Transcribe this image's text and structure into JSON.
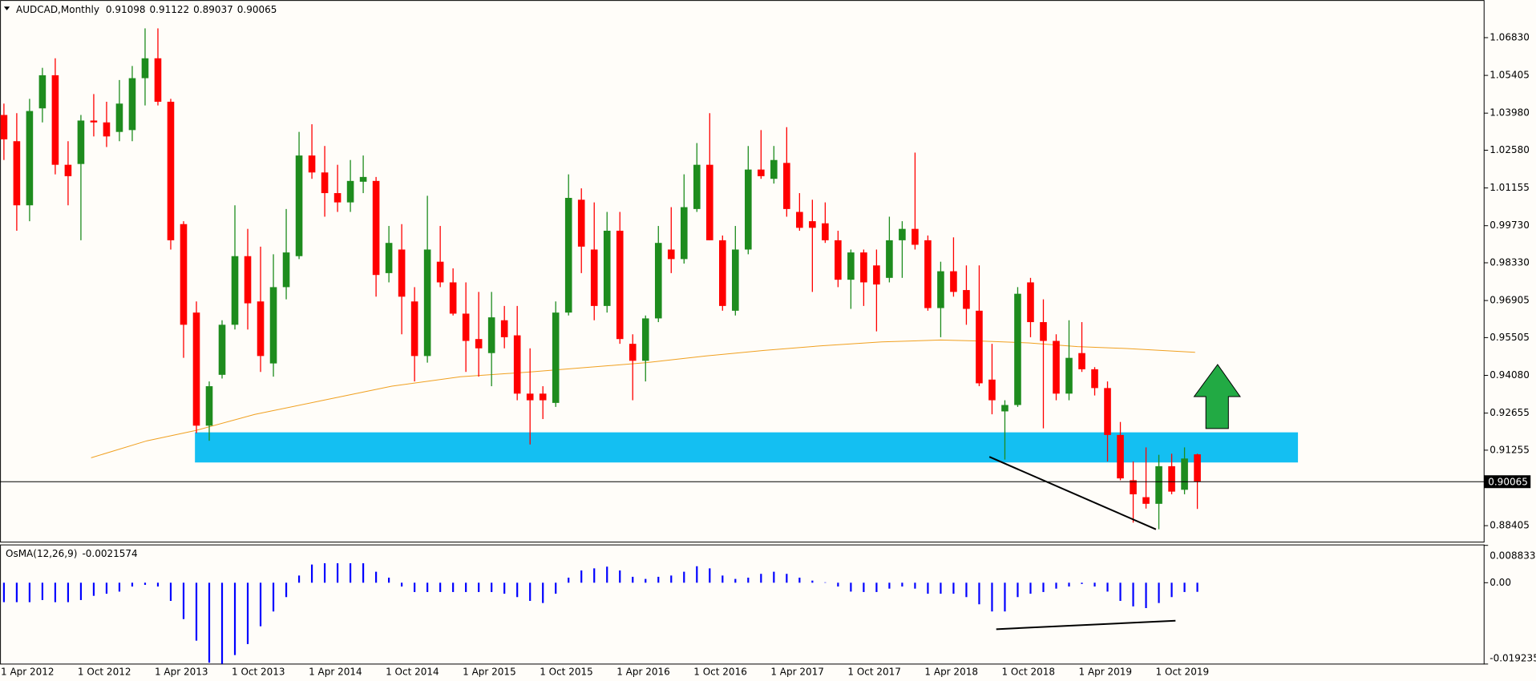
{
  "chart_data": [
    {
      "type": "candlestick",
      "title": "AUDCAD,Monthly",
      "categories": [
        "1 Apr 2012",
        null,
        null,
        null,
        null,
        null,
        "1 Oct 2012",
        null,
        null,
        null,
        null,
        null,
        "1 Apr 2013",
        null,
        null,
        null,
        null,
        null,
        "1 Oct 2013",
        null,
        null,
        null,
        null,
        null,
        "1 Apr 2014",
        null,
        null,
        null,
        null,
        null,
        "1 Oct 2014",
        null,
        null,
        null,
        null,
        null,
        "1 Apr 2015",
        null,
        null,
        null,
        null,
        null,
        "1 Oct 2015",
        null,
        null,
        null,
        null,
        null,
        "1 Apr 2016",
        null,
        null,
        null,
        null,
        null,
        "1 Oct 2016",
        null,
        null,
        null,
        null,
        null,
        "1 Apr 2017",
        null,
        null,
        null,
        null,
        null,
        "1 Oct 2017",
        null,
        null,
        null,
        null,
        null,
        "1 Apr 2018",
        null,
        null,
        null,
        null,
        null,
        "1 Oct 2018",
        null,
        null,
        null,
        null,
        null,
        "1 Apr 2019",
        null,
        null,
        null,
        null,
        null,
        "1 Oct 2019",
        null,
        null,
        null
      ],
      "open": [
        1.0391,
        1.0292,
        1.005,
        1.0416,
        1.0541,
        1.0203,
        1.0206,
        1.037,
        1.0363,
        1.0327,
        1.0334,
        1.053,
        1.0605,
        1.0441,
        0.9979,
        0.9645,
        0.9218,
        0.941,
        0.9599,
        0.9858,
        0.9687,
        0.9453,
        0.9741,
        0.9858,
        1.0238,
        1.0174,
        1.0096,
        1.0061,
        1.0139,
        1.0142,
        0.9794,
        0.9883,
        0.9687,
        0.9481,
        0.9837,
        0.9759,
        0.9641,
        0.9545,
        0.9492,
        0.9616,
        0.9559,
        0.9339,
        0.9339,
        0.9304,
        0.9645,
        1.0071,
        0.9883,
        0.967,
        0.9954,
        0.9527,
        0.9463,
        0.9623,
        0.9883,
        0.9847,
        1.0036,
        1.0203,
        0.9918,
        0.9652,
        0.9883,
        1.0185,
        1.015,
        1.021,
        1.0025,
        0.999,
        0.9982,
        0.9918,
        0.9769,
        0.9872,
        0.9823,
        0.9776,
        0.9918,
        0.9961,
        0.9918,
        0.9662,
        0.9801,
        0.973,
        0.9652,
        0.9392,
        0.9272,
        0.9296,
        0.9759,
        0.9609,
        0.9538,
        0.9339,
        0.9492,
        0.9431,
        0.936,
        0.9183,
        0.9012,
        0.8948,
        0.8923,
        0.9065,
        0.8976,
        0.91098
      ],
      "high": [
        1.0434,
        1.0398,
        1.0452,
        1.0569,
        1.0605,
        1.0292,
        1.0391,
        1.047,
        1.0441,
        1.0523,
        1.0576,
        1.0718,
        1.0718,
        1.0452,
        0.999,
        0.9687,
        0.9385,
        0.9616,
        1.005,
        0.9961,
        0.9894,
        0.9865,
        1.0036,
        1.0327,
        1.0356,
        1.0274,
        1.0203,
        1.0221,
        1.0238,
        1.0157,
        0.9972,
        0.9979,
        0.9741,
        1.0086,
        0.9972,
        0.9812,
        0.9759,
        0.9723,
        0.9723,
        0.967,
        0.967,
        0.951,
        0.9367,
        0.9687,
        1.0167,
        1.0114,
        1.0061,
        1.0025,
        1.0025,
        0.9563,
        0.9634,
        0.9972,
        1.0043,
        1.0167,
        1.0285,
        1.0398,
        0.9936,
        0.9972,
        1.0274,
        1.0334,
        1.0274,
        1.0345,
        1.0096,
        1.0071,
        1.0061,
        0.9954,
        0.9883,
        0.9883,
        0.9883,
        1.0007,
        0.999,
        1.0249,
        0.9936,
        0.9837,
        0.9929,
        0.9823,
        0.9823,
        0.9527,
        0.9314,
        0.9741,
        0.9776,
        0.9695,
        0.9563,
        0.9616,
        0.9609,
        0.9439,
        0.9385,
        0.9232,
        0.9083,
        0.9136,
        0.9108,
        0.9112,
        0.9136,
        0.91122
      ],
      "low": [
        1.0221,
        0.9954,
        0.999,
        1.0363,
        1.0167,
        1.005,
        0.9918,
        1.031,
        1.027,
        1.0292,
        1.0292,
        1.0427,
        1.0427,
        0.9883,
        0.9474,
        0.919,
        0.9161,
        0.9396,
        0.9581,
        0.9581,
        0.9421,
        0.9403,
        0.9695,
        0.9847,
        1.015,
        1.0007,
        1.0025,
        1.0025,
        1.0096,
        0.9705,
        0.9759,
        0.9563,
        0.9385,
        0.9456,
        0.9741,
        0.9634,
        0.9421,
        0.9403,
        0.9367,
        0.951,
        0.9314,
        0.9147,
        0.9243,
        0.9289,
        0.9634,
        0.9794,
        0.9616,
        0.9645,
        0.9527,
        0.9314,
        0.9385,
        0.9609,
        0.9794,
        0.983,
        1.0025,
        0.9918,
        0.9652,
        0.9634,
        0.9865,
        1.015,
        1.0132,
        1.0007,
        0.9954,
        0.9723,
        0.9908,
        0.9741,
        0.9659,
        0.967,
        0.9574,
        0.9759,
        0.9776,
        0.9883,
        0.9652,
        0.9552,
        0.9705,
        0.9599,
        0.9367,
        0.9261,
        0.909,
        0.9289,
        0.9552,
        0.9208,
        0.9314,
        0.9314,
        0.9421,
        0.9332,
        0.9083,
        0.9012,
        0.8852,
        0.8905,
        0.8827,
        0.8959,
        0.8959,
        0.89037
      ],
      "close": [
        1.0299,
        1.005,
        1.0406,
        1.0541,
        1.0203,
        1.016,
        1.037,
        1.0363,
        1.031,
        1.0434,
        1.053,
        1.0605,
        1.0441,
        0.9918,
        0.9599,
        0.9218,
        0.9367,
        0.9599,
        0.9858,
        0.968,
        0.9481,
        0.9741,
        0.9872,
        1.0238,
        1.0174,
        1.0096,
        1.0061,
        1.0142,
        1.0157,
        0.9787,
        0.9908,
        0.9705,
        0.9481,
        0.9883,
        0.9759,
        0.9641,
        0.9538,
        0.951,
        0.9627,
        0.9552,
        0.9339,
        0.9314,
        0.9314,
        0.9645,
        1.0078,
        0.9894,
        0.967,
        0.9954,
        0.9545,
        0.9463,
        0.9623,
        0.9908,
        0.9847,
        1.0043,
        1.0203,
        0.9918,
        0.967,
        0.9883,
        1.0185,
        1.016,
        1.0221,
        1.0036,
        0.9965,
        0.9965,
        0.9918,
        0.9769,
        0.9872,
        0.9759,
        0.9751,
        0.9918,
        0.9961,
        0.9901,
        0.9662,
        0.9801,
        0.9723,
        0.9659,
        0.9378,
        0.9314,
        0.9296,
        0.9716,
        0.9609,
        0.9538,
        0.9339,
        0.9474,
        0.9431,
        0.936,
        0.9183,
        0.9019,
        0.8959,
        0.8923,
        0.9065,
        0.8969,
        0.9094,
        0.90065
      ],
      "up_color": "#1e8c1e",
      "down_color": "#ff0000",
      "ylim": [
        0.8791,
        1.0818
      ],
      "yticks": [
        {
          "value": 1.0683,
          "label": "1.06830"
        },
        1.05405,
        {
          "value": 1.0398,
          "label": "1.03980"
        },
        {
          "value": 1.0258,
          "label": "1.02580"
        },
        1.01155,
        {
          "value": 0.9973,
          "label": "0.99730"
        },
        {
          "value": 0.9833,
          "label": "0.98330"
        },
        0.96905,
        0.95505,
        {
          "value": 0.9408,
          "label": "0.94080"
        },
        0.92655,
        0.91255,
        0.88405
      ]
    },
    {
      "type": "bar",
      "title": "OsMA(12,26,9)",
      "values": [
        -0.0046,
        -0.0046,
        -0.0046,
        -0.0041,
        -0.0046,
        -0.0046,
        -0.0041,
        -0.0031,
        -0.0026,
        -0.0021,
        -0.0009,
        -0.0005,
        -0.0009,
        -0.0043,
        -0.0086,
        -0.0137,
        -0.0189,
        -0.0192,
        -0.0171,
        -0.0145,
        -0.0103,
        -0.0068,
        -0.0034,
        0.0017,
        0.0043,
        0.0046,
        0.0046,
        0.0046,
        0.0046,
        0.0026,
        0.0012,
        -0.0009,
        -0.0022,
        -0.0022,
        -0.0022,
        -0.0022,
        -0.0022,
        -0.0022,
        -0.0022,
        -0.0026,
        -0.0034,
        -0.0043,
        -0.0048,
        -0.0026,
        0.0012,
        0.0029,
        0.0034,
        0.0038,
        0.0029,
        0.0014,
        0.0009,
        0.0014,
        0.0017,
        0.0026,
        0.0039,
        0.0034,
        0.0017,
        0.0009,
        0.0012,
        0.0021,
        0.0026,
        0.0021,
        0.0012,
        0.0005,
        0.0001,
        -0.0009,
        -0.0021,
        -0.0022,
        -0.0022,
        -0.0014,
        -0.0009,
        -0.0014,
        -0.0026,
        -0.0026,
        -0.0026,
        -0.0034,
        -0.0051,
        -0.0068,
        -0.0068,
        -0.0034,
        -0.0026,
        -0.0022,
        -0.0014,
        -0.0009,
        -0.0003,
        -0.0009,
        -0.0021,
        -0.0043,
        -0.0056,
        -0.006,
        -0.0048,
        -0.0034,
        -0.0022,
        -0.0021574
      ],
      "color": "#0000ff",
      "ylim": [
        -0.0192355,
        0.0088334
      ],
      "yticks": [
        0.0088334,
        {
          "value": 0,
          "label": "0.00"
        },
        -0.0192355
      ]
    }
  ]
}
